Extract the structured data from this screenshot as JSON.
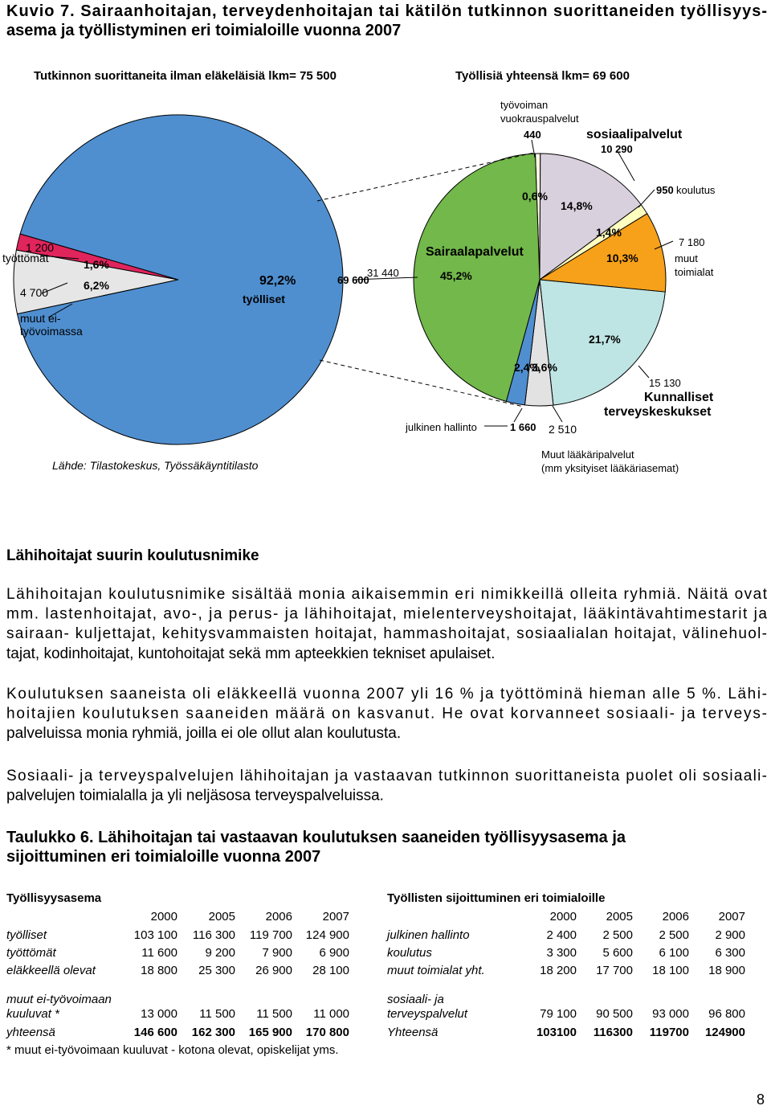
{
  "title_lines": [
    "Kuvio 7. Sairaanhoitajan, terveydenhoitajan tai kätilön tutkinnon suorittaneiden työllisyys-",
    "asema ja työllistyminen eri toimialoille vuonna 2007"
  ],
  "pie_left": {
    "type": "pie",
    "title": "Tutkinnon suorittaneita ilman eläkeläisiä lkm= 75 500",
    "slices": [
      {
        "name_lines": [
          "muut ei-",
          "työvoimassa"
        ],
        "value": 4700,
        "value_label": "4 700",
        "percent": 6.2,
        "percent_label": "6,2%",
        "color": "#e6e6e6"
      },
      {
        "name_lines": [
          "työttömät"
        ],
        "value": 1200,
        "value_label": "1 200",
        "percent": 1.6,
        "percent_label": "1,6%",
        "color": "#e0245c"
      },
      {
        "name_lines": [
          "työlliset"
        ],
        "value": 69600,
        "value_label": "69 600",
        "percent": 92.2,
        "percent_label": "92,2%",
        "color": "#4f8fd0"
      }
    ]
  },
  "pie_right": {
    "type": "pie",
    "title": "Työllisiä yhteensä lkm= 69 600",
    "slices": [
      {
        "name_lines": [
          "työvoiman",
          "vuokrauspalvelut"
        ],
        "value": 440,
        "value_label": "440",
        "percent": 0.6,
        "percent_label": "0,6%",
        "color": "#ffffe6"
      },
      {
        "name_lines": [
          "sosiaalipalvelut"
        ],
        "value": 10290,
        "value_label": "10 290",
        "percent": 14.8,
        "percent_label": "14,8%",
        "color": "#d9d0de"
      },
      {
        "name_lines": [
          "koulutus"
        ],
        "value": 950,
        "value_label": "950",
        "percent": 1.4,
        "percent_label": "1,4%",
        "color": "#ffffc0"
      },
      {
        "name_lines": [
          "muut",
          "toimialat"
        ],
        "value": 7180,
        "value_label": "7 180",
        "percent": 10.3,
        "percent_label": "10,3%",
        "color": "#f7a11a"
      },
      {
        "name_lines": [
          "Kunnalliset",
          "terveyskeskukset"
        ],
        "value": 15130,
        "value_label": "15 130",
        "percent": 21.7,
        "percent_label": "21,7%",
        "color": "#bfe4e4"
      },
      {
        "name_lines": [
          "Muut lääkäripalvelut",
          "(mm yksityiset lääkäriasemat)"
        ],
        "value": 2510,
        "value_label": "2 510",
        "percent": 3.6,
        "percent_label": "3,6%",
        "color": "#e2e2e2"
      },
      {
        "name_lines": [
          "julkinen hallinto"
        ],
        "value": 1660,
        "value_label": "1 660",
        "percent": 2.4,
        "percent_label": "2,4%",
        "color": "#4f8fd0"
      },
      {
        "name_lines": [
          "Sairaalapalvelut"
        ],
        "value": 31440,
        "value_label": "31 440",
        "percent": 45.2,
        "percent_label": "45,2%",
        "color": "#72b84a"
      }
    ]
  },
  "source": "Lähde: Tilastokeskus, Työssäkäyntitilasto",
  "section_heading": "Lähihoitajat suurin koulutusnimike",
  "paragraphs": [
    [
      "Lähihoitajan koulutusnimike sisältää monia aikaisemmin eri nimikkeillä olleita ryhmiä. Näitä ovat",
      "mm. lastenhoitajat, avo-, ja perus- ja lähihoitajat, mielenterveyshoitajat, lääkintävahtimestarit ja",
      "sairaan- kuljettajat, kehitysvammaisten hoitajat, hammashoitajat, sosiaalialan hoitajat, välinehuol-",
      "tajat, kodinhoitajat, kuntohoitajat sekä mm apteekkien tekniset apulaiset."
    ],
    [
      "Koulutuksen saaneista oli eläkkeellä vuonna 2007 yli 16 % ja työttöminä hieman alle 5 %. Lähi-",
      "hoitajien koulutuksen saaneiden määrä on kasvanut. He ovat korvanneet sosiaali- ja terveys-",
      "palveluissa monia ryhmiä, joilla ei ole ollut alan koulutusta."
    ],
    [
      "Sosiaali- ja terveyspalvelujen lähihoitajan ja vastaavan tutkinnon suorittaneista puolet oli sosiaali-",
      "palvelujen toimialalla ja yli neljäsosa terveyspalveluissa."
    ]
  ],
  "table": {
    "title_lines": [
      "Taulukko 6. Lähihoitajan tai vastaavan koulutuksen saaneiden työllisyysasema ja",
      "sijoittuminen eri toimialoille vuonna 2007"
    ],
    "left": {
      "heading": "Työllisyysasema",
      "years": [
        "2000",
        "2005",
        "2006",
        "2007"
      ],
      "rows": [
        {
          "label_lines": [
            "työlliset"
          ],
          "cells": [
            "103 100",
            "116 300",
            "119 700",
            "124 900"
          ]
        },
        {
          "label_lines": [
            "työttömät"
          ],
          "cells": [
            "11 600",
            "9 200",
            "7 900",
            "6 900"
          ]
        },
        {
          "label_lines": [
            "eläkkeellä olevat"
          ],
          "cells": [
            "18 800",
            "25 300",
            "26 900",
            "28 100"
          ]
        },
        {
          "label_lines": [
            "muut ei-työvoimaan",
            "kuuluvat *"
          ],
          "cells": [
            "13 000",
            "11 500",
            "11 500",
            "11 000"
          ]
        },
        {
          "label_lines": [
            "yhteensä"
          ],
          "cells": [
            "146 600",
            "162 300",
            "165 900",
            "170 800"
          ]
        }
      ]
    },
    "right": {
      "heading": "Työllisten sijoittuminen eri toimialoille",
      "years": [
        "2000",
        "2005",
        "2006",
        "2007"
      ],
      "rows": [
        {
          "label_lines": [
            "julkinen hallinto"
          ],
          "cells": [
            "2 400",
            "2 500",
            "2 500",
            "2 900"
          ]
        },
        {
          "label_lines": [
            "koulutus"
          ],
          "cells": [
            "3 300",
            "5 600",
            "6 100",
            "6 300"
          ]
        },
        {
          "label_lines": [
            "muut toimialat yht."
          ],
          "cells": [
            "18 200",
            "17 700",
            "18 100",
            "18 900"
          ]
        },
        {
          "label_lines": [
            "sosiaali- ja",
            "terveyspalvelut"
          ],
          "cells": [
            "79 100",
            "90 500",
            "93 000",
            "96 800"
          ]
        },
        {
          "label_lines": [
            "Yhteensä"
          ],
          "cells": [
            "103100",
            "116300",
            "119700",
            "124900"
          ]
        }
      ]
    },
    "footnote": "* muut ei-työvoimaan kuuluvat - kotona olevat, opiskelijat yms."
  },
  "page_number": "8"
}
